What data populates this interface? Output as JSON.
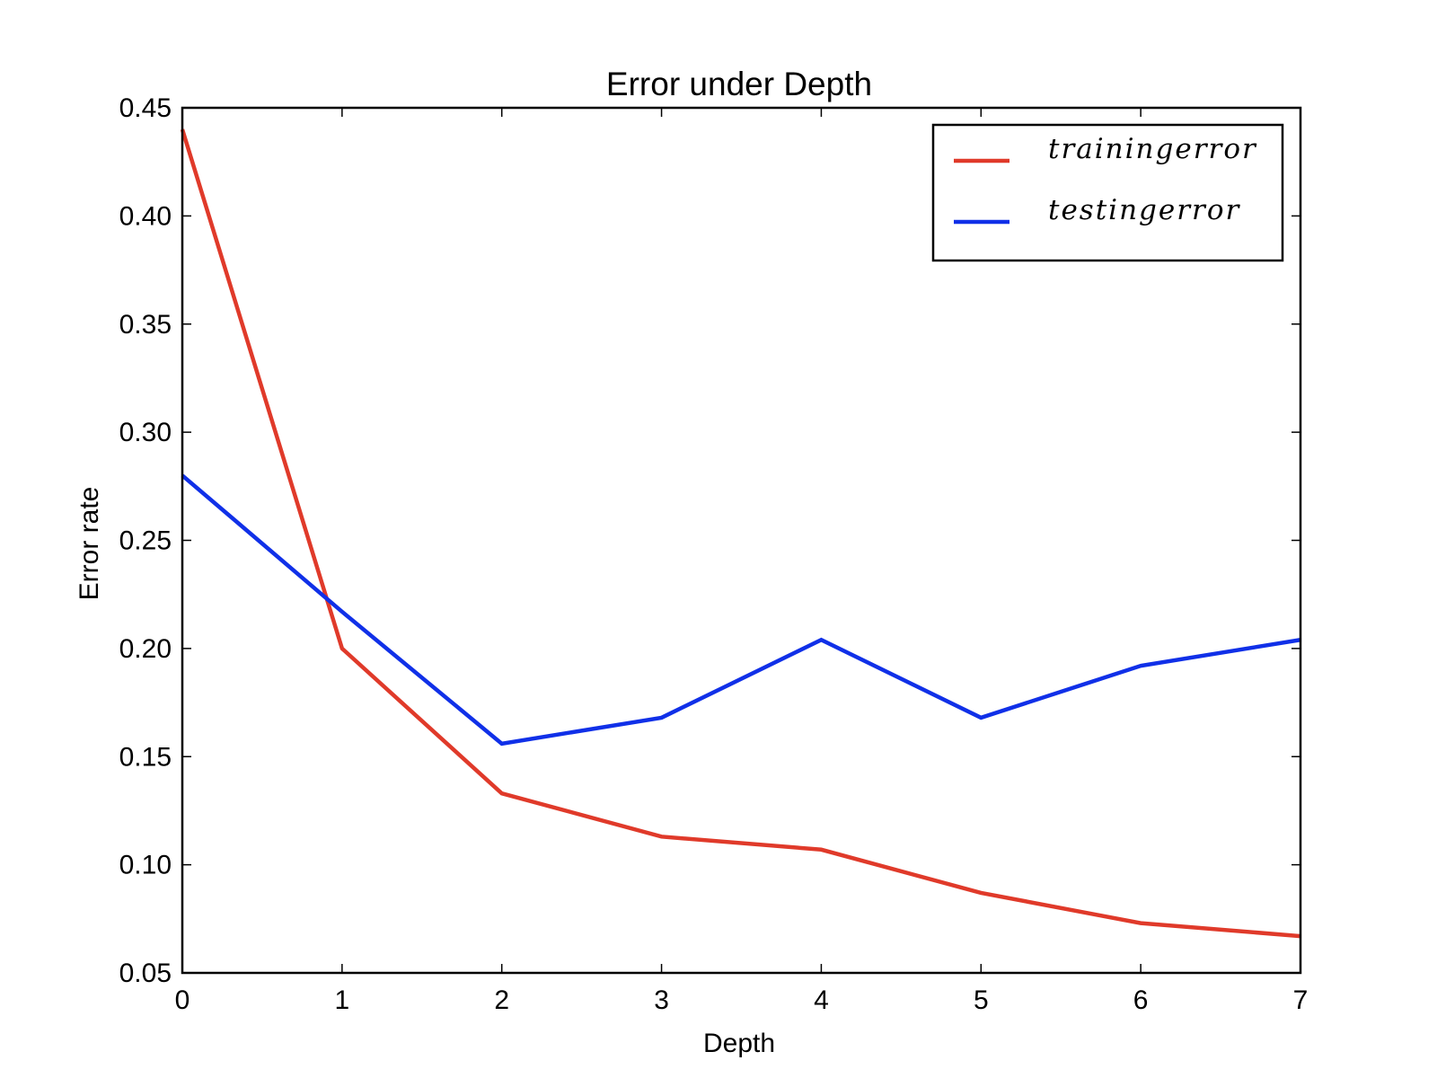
{
  "chart_data": {
    "type": "line",
    "title": "Error under Depth",
    "xlabel": "Depth",
    "ylabel": "Error rate",
    "xlim": [
      0,
      7
    ],
    "ylim": [
      0.05,
      0.45
    ],
    "x_ticks": [
      "0",
      "1",
      "2",
      "3",
      "4",
      "5",
      "6",
      "7"
    ],
    "y_ticks": [
      "0.05",
      "0.10",
      "0.15",
      "0.20",
      "0.25",
      "0.30",
      "0.35",
      "0.40",
      "0.45"
    ],
    "x": [
      0,
      1,
      2,
      3,
      4,
      5,
      6,
      7
    ],
    "series": [
      {
        "name": "trainingerror",
        "color": "#e03a2a",
        "values": [
          0.44,
          0.2,
          0.133,
          0.113,
          0.107,
          0.087,
          0.073,
          0.067
        ]
      },
      {
        "name": "testingerror",
        "color": "#1030e8",
        "values": [
          0.28,
          0.217,
          0.156,
          0.168,
          0.204,
          0.168,
          0.192,
          0.204
        ]
      }
    ],
    "grid": false,
    "legend_position": "top-right"
  }
}
